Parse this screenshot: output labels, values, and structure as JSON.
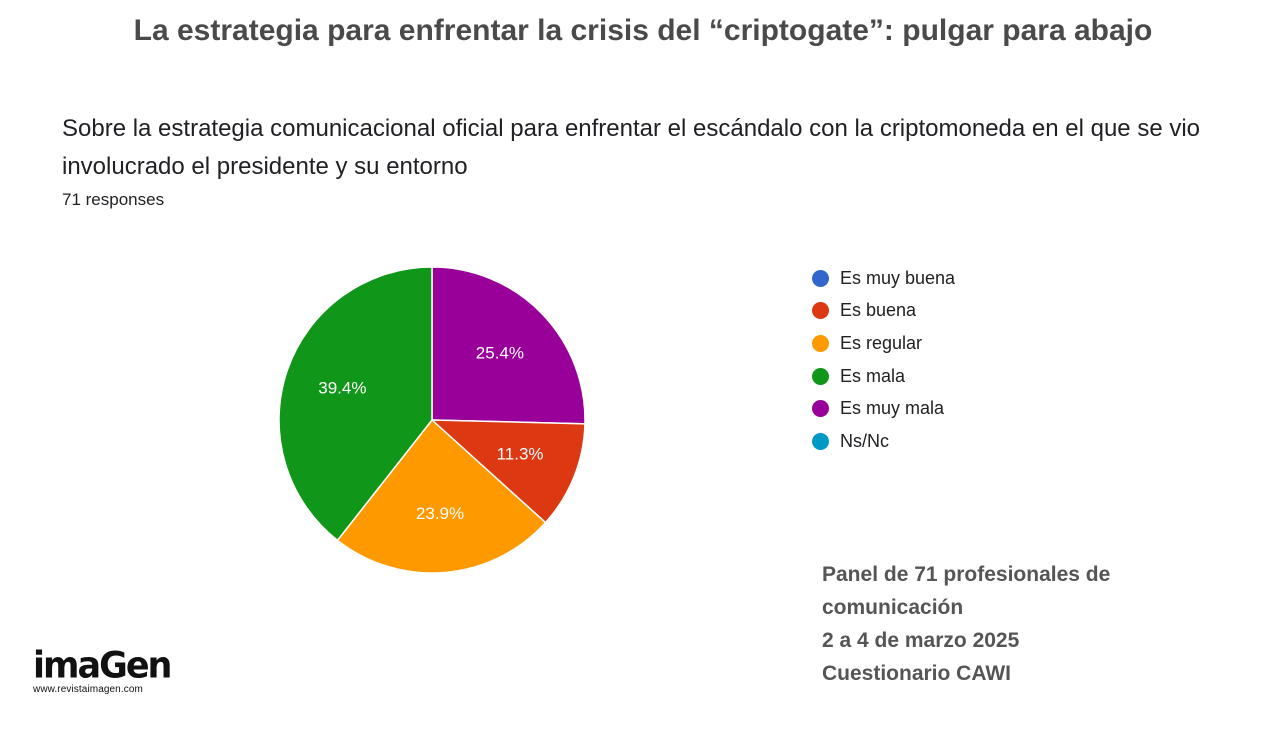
{
  "headline": "La estrategia para enfrentar la crisis del “criptogate”: pulgar para abajo",
  "chart_data": {
    "type": "pie",
    "title": "Sobre la estrategia  comunicacional oficial para enfrentar el escándalo con la criptomoneda en el que se vio involucrado el presidente y su entorno",
    "subtitle": "71 responses",
    "legend_position": "right",
    "categories": [
      "Es muy buena",
      "Es buena",
      "Es regular",
      "Es mala",
      "Es muy mala",
      "Ns/Nc"
    ],
    "values": [
      0,
      11.3,
      23.9,
      39.4,
      25.4,
      0
    ],
    "labels": [
      "",
      "11.3%",
      "23.9%",
      "39.4%",
      "25.4%",
      ""
    ],
    "colors": [
      "#3366cc",
      "#dc3912",
      "#ff9900",
      "#109618",
      "#990099",
      "#0099c6"
    ]
  },
  "panel": {
    "lines": [
      "Panel de 71 profesionales de",
      "comunicación",
      "2 a 4 de marzo 2025",
      "Cuestionario CAWI"
    ]
  },
  "logo": {
    "word": "imaGen",
    "url": "www.revistaimagen.com"
  }
}
